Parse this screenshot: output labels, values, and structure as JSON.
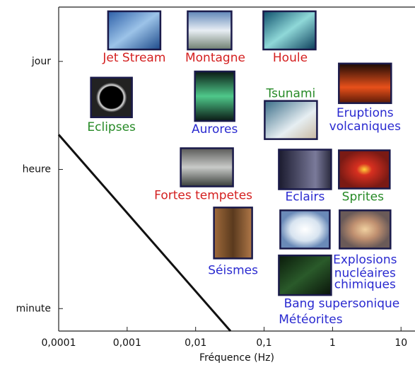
{
  "chart_data": {
    "type": "annotated-log",
    "xlabel": "Fréquence (Hz)",
    "xlog": true,
    "ylog": true,
    "xlim": [
      0.0001,
      16
    ],
    "ylim": [
      31,
      427000
    ],
    "xticks": [
      {
        "value": 0.0001,
        "label": "0,0001"
      },
      {
        "value": 0.001,
        "label": "0,001"
      },
      {
        "value": 0.01,
        "label": "0,01"
      },
      {
        "value": 0.1,
        "label": "0,1"
      },
      1,
      10
    ],
    "yticks": [
      {
        "value": 86400,
        "label": "jour"
      },
      {
        "value": 3600,
        "label": "heure"
      },
      {
        "value": 60,
        "label": "minute"
      }
    ],
    "line": {
      "color": "#111111",
      "x": [
        0.0001,
        0.0323
      ],
      "values": [
        10000,
        31
      ]
    },
    "items": [
      {
        "label": [
          "Jet Stream"
        ],
        "color": "#d42020",
        "x": 0.00127,
        "y": 215000
      },
      {
        "label": [
          "Montagne"
        ],
        "color": "#d42020",
        "x": 0.016,
        "y": 215000
      },
      {
        "label": [
          "Houle"
        ],
        "color": "#d42020",
        "x": 0.235,
        "y": 215000
      },
      {
        "label": [
          "Eclipses"
        ],
        "color": "#268a26",
        "x": 0.00059,
        "y": 29900
      },
      {
        "label": [
          "Aurores"
        ],
        "color": "#2a2ad0",
        "x": 0.019,
        "y": 31000
      },
      {
        "label": [
          "Tsunami"
        ],
        "color": "#268a26",
        "x": 0.246,
        "y": 15400
      },
      {
        "label": [
          "Eruptions",
          "volcaniques"
        ],
        "color": "#2a2ad0",
        "x": 2.98,
        "y": 45300
      },
      {
        "label": [
          "Fortes tempetes"
        ],
        "color": "#d42020",
        "x": 0.0146,
        "y": 3830
      },
      {
        "label": [
          "Eclairs"
        ],
        "color": "#2a2ad0",
        "x": 0.396,
        "y": 3600
      },
      {
        "label": [
          "Sprites"
        ],
        "color": "#268a26",
        "x": 2.91,
        "y": 3600
      },
      {
        "label": [
          "Séismes"
        ],
        "color": "#2a2ad0",
        "x": 0.0352,
        "y": 555
      },
      {
        "label": [
          "Explosions",
          "nucléaires",
          "chimiques"
        ],
        "color": "#2a2ad0",
        "x": 2.98,
        "y": 616
      },
      {
        "label": [
          "Bang supersonique"
        ],
        "color": "#2a2ad0",
        "x": 0.396,
        "y": 616
      },
      {
        "label": [
          "Météorites"
        ],
        "color": "#2a2ad0",
        "x": 0.396,
        "y": 160
      }
    ]
  }
}
